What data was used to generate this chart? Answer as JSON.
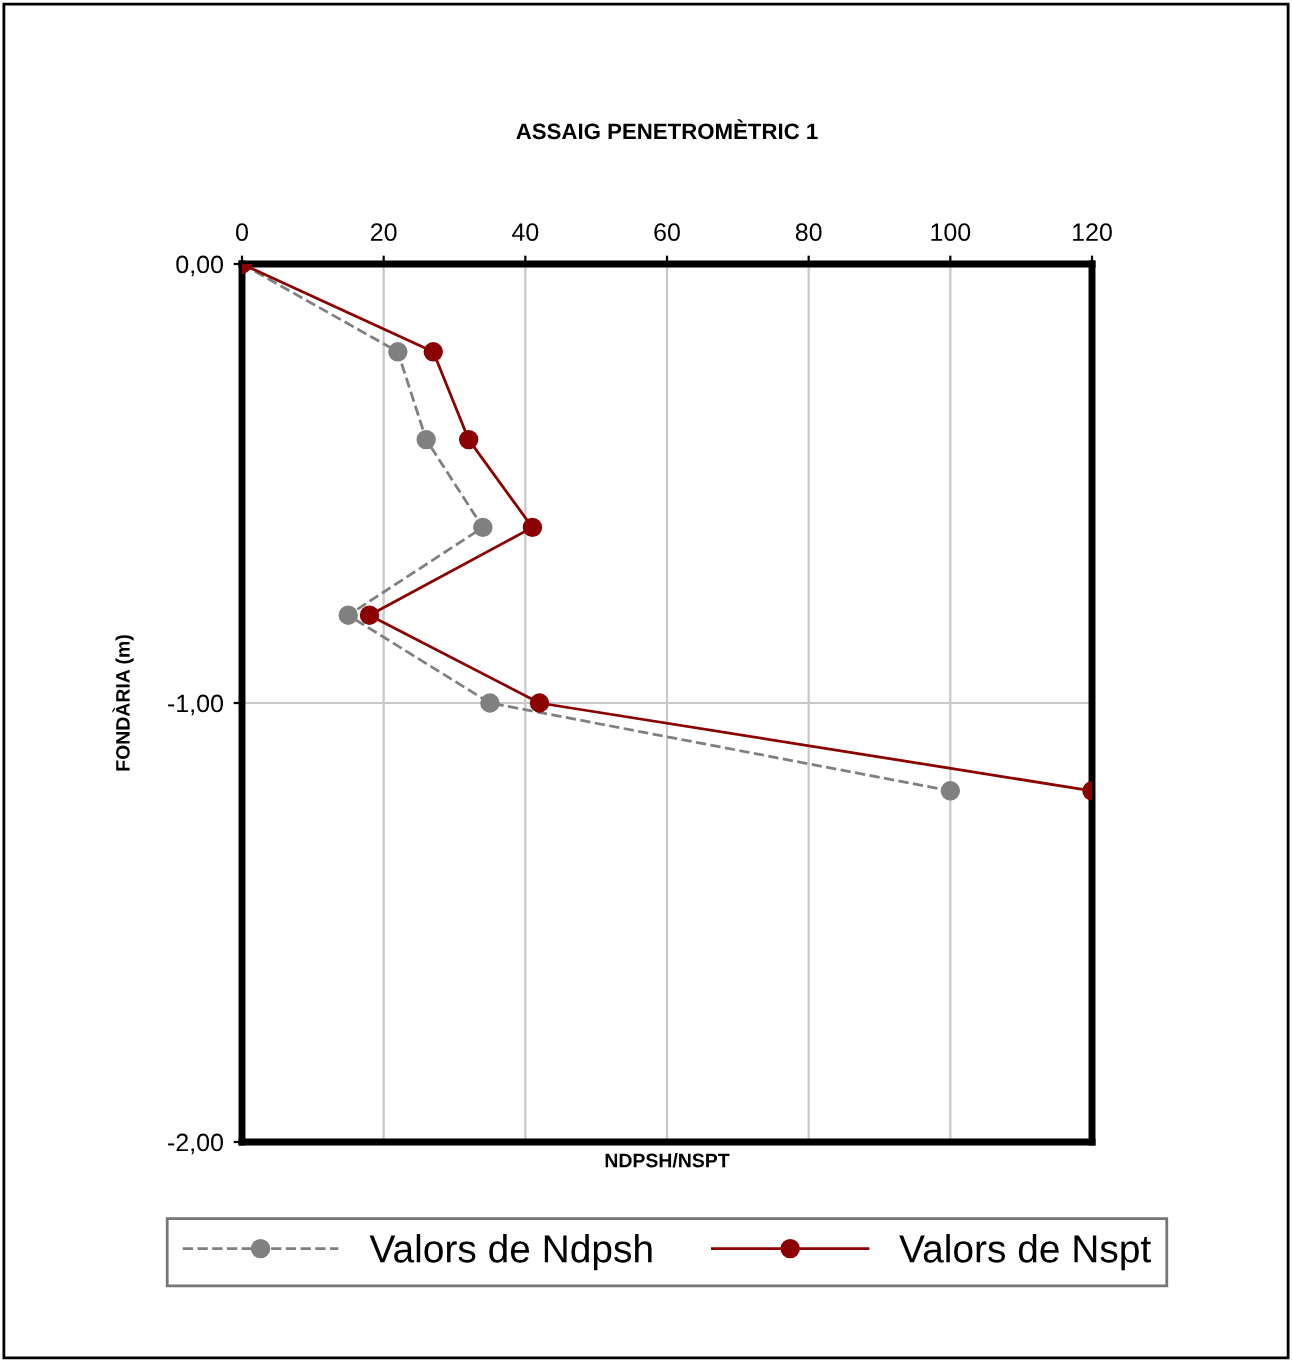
{
  "chart_data": {
    "type": "line",
    "title": "ASSAIG PENETROMÈTRIC 1",
    "xlabel": "NDPSH/NSPT",
    "ylabel": "FONDÀRIA (m)",
    "xlim": [
      0,
      120
    ],
    "xticks": [
      0,
      20,
      40,
      60,
      80,
      100,
      120
    ],
    "ylim": [
      -2,
      0
    ],
    "yticks": [
      {
        "value": 0,
        "label": "0,00"
      },
      {
        "value": -1,
        "label": "-1,00"
      },
      {
        "value": -2,
        "label": "-2,00"
      }
    ],
    "grid": true,
    "legend": "bottom",
    "marker": "circle",
    "series": [
      {
        "name": "Valors de Ndpsh",
        "color": "#808080",
        "line_style": "dashed",
        "x": [
          0,
          22,
          26,
          34,
          15,
          35,
          100
        ],
        "values": [
          0,
          -0.2,
          -0.4,
          -0.6,
          -0.8,
          -1.0,
          -1.2
        ]
      },
      {
        "name": "Valors de Nspt",
        "color": "#8b0000",
        "line_style": "solid",
        "x": [
          0,
          27,
          32,
          41,
          18,
          42,
          120
        ],
        "values": [
          0,
          -0.2,
          -0.4,
          -0.6,
          -0.8,
          -1.0,
          -1.2
        ]
      }
    ]
  }
}
